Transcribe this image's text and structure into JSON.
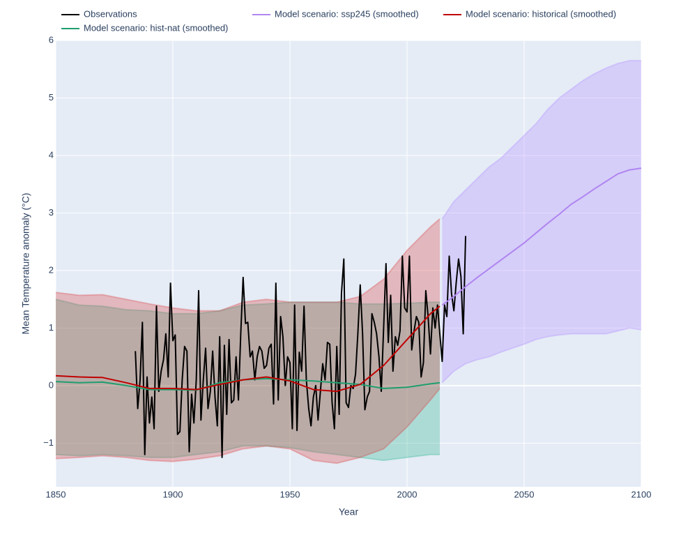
{
  "chart_data": {
    "type": "line",
    "xlabel": "Year",
    "ylabel": "Mean Temperature anomaly (°C)",
    "xlim": [
      1850,
      2100
    ],
    "ylim": [
      -1.76,
      6
    ],
    "xticks": [
      1850,
      1900,
      1950,
      2000,
      2050,
      2100
    ],
    "yticks": [
      {
        "value": -1,
        "label": "−1"
      },
      0,
      1,
      2,
      3,
      4,
      5,
      6
    ],
    "grid": true,
    "legend": "top",
    "series": [
      {
        "name": "Observations",
        "color": "#000000",
        "x": [
          1884,
          1885,
          1886,
          1887,
          1888,
          1889,
          1890,
          1891,
          1892,
          1893,
          1894,
          1895,
          1896,
          1897,
          1898,
          1899,
          1900,
          1901,
          1902,
          1903,
          1904,
          1905,
          1906,
          1907,
          1908,
          1909,
          1910,
          1911,
          1912,
          1913,
          1914,
          1915,
          1916,
          1917,
          1918,
          1919,
          1920,
          1921,
          1922,
          1923,
          1924,
          1925,
          1926,
          1927,
          1928,
          1929,
          1930,
          1931,
          1932,
          1933,
          1934,
          1935,
          1936,
          1937,
          1938,
          1939,
          1940,
          1941,
          1942,
          1943,
          1944,
          1945,
          1946,
          1947,
          1948,
          1949,
          1950,
          1951,
          1952,
          1953,
          1954,
          1955,
          1956,
          1957,
          1958,
          1959,
          1960,
          1961,
          1962,
          1963,
          1964,
          1965,
          1966,
          1967,
          1968,
          1969,
          1970,
          1971,
          1972,
          1973,
          1974,
          1975,
          1976,
          1977,
          1978,
          1979,
          1980,
          1981,
          1982,
          1983,
          1984,
          1985,
          1986,
          1987,
          1988,
          1989,
          1990,
          1991,
          1992,
          1993,
          1994,
          1995,
          1996,
          1997,
          1998,
          1999,
          2000,
          2001,
          2002,
          2003,
          2004,
          2005,
          2006,
          2007,
          2008,
          2009,
          2010,
          2011,
          2012,
          2013,
          2014,
          2015,
          2016,
          2017,
          2018,
          2019,
          2020,
          2021,
          2022,
          2023,
          2024,
          2025
        ],
        "values": [
          0.6,
          -0.4,
          0.1,
          1.1,
          -1.2,
          0.15,
          -0.65,
          -0.2,
          -0.75,
          1.38,
          -0.1,
          0.25,
          0.45,
          0.9,
          0.15,
          1.78,
          0.78,
          0.88,
          -0.85,
          -0.8,
          0.1,
          0.68,
          0.6,
          -1.15,
          -0.15,
          -0.65,
          0.1,
          1.65,
          -0.6,
          0.1,
          0.65,
          -0.4,
          -0.1,
          0.6,
          -0.2,
          -0.7,
          0.85,
          -1.25,
          0.7,
          -0.5,
          0.8,
          -0.3,
          -0.25,
          0.5,
          -0.25,
          0.9,
          1.88,
          1.08,
          1.1,
          0.5,
          0.6,
          0.1,
          0.5,
          0.68,
          0.6,
          0.3,
          0.35,
          0.65,
          0.72,
          -0.32,
          1.78,
          -0.25,
          1.2,
          0.85,
          0.0,
          0.5,
          0.4,
          -0.75,
          1.4,
          -0.78,
          0.58,
          0.25,
          1.38,
          0.1,
          -0.4,
          -0.7,
          -0.2,
          0.0,
          -0.6,
          -0.1,
          0.38,
          0.1,
          0.75,
          0.72,
          -0.3,
          -0.75,
          0.68,
          -0.5,
          1.6,
          2.2,
          -0.3,
          -0.38,
          0.0,
          -0.05,
          0.2,
          0.9,
          1.75,
          0.9,
          -0.42,
          -0.2,
          -0.1,
          1.25,
          1.1,
          0.9,
          0.5,
          -0.1,
          1.0,
          2.12,
          0.75,
          1.57,
          0.25,
          0.85,
          0.7,
          0.95,
          2.25,
          1.35,
          1.28,
          2.25,
          0.62,
          0.95,
          1.2,
          1.1,
          0.15,
          0.4,
          1.65,
          1.2,
          0.55,
          1.35,
          1.0,
          1.4,
          0.9,
          0.42,
          1.4,
          1.2,
          2.25,
          1.6,
          1.3,
          1.8,
          2.2,
          1.9,
          0.9,
          2.6
        ]
      },
      {
        "name": "Model scenario: hist-nat (smoothed)",
        "color": "#1f9e6e",
        "fill": "rgba(40,180,140,0.3)",
        "x": [
          1850,
          1860,
          1870,
          1880,
          1890,
          1900,
          1910,
          1920,
          1930,
          1940,
          1950,
          1960,
          1970,
          1980,
          1990,
          2000,
          2010,
          2014
        ],
        "values": [
          0.07,
          0.05,
          0.06,
          0.0,
          -0.07,
          -0.07,
          -0.08,
          0.05,
          0.1,
          0.12,
          0.1,
          0.08,
          0.05,
          0.02,
          -0.05,
          -0.03,
          0.03,
          0.05
        ],
        "upper": [
          1.5,
          1.4,
          1.38,
          1.32,
          1.3,
          1.25,
          1.25,
          1.3,
          1.4,
          1.42,
          1.45,
          1.45,
          1.45,
          1.42,
          1.42,
          1.43,
          1.45,
          1.45
        ],
        "lower": [
          -1.2,
          -1.22,
          -1.2,
          -1.22,
          -1.25,
          -1.25,
          -1.2,
          -1.15,
          -1.05,
          -1.05,
          -1.08,
          -1.15,
          -1.2,
          -1.25,
          -1.3,
          -1.25,
          -1.2,
          -1.2
        ]
      },
      {
        "name": "Model scenario: ssp245 (smoothed)",
        "color": "#b085f0",
        "fill": "rgba(175,135,255,0.3)",
        "x": [
          2015,
          2020,
          2025,
          2030,
          2035,
          2040,
          2045,
          2050,
          2055,
          2060,
          2065,
          2070,
          2075,
          2080,
          2085,
          2090,
          2095,
          2100
        ],
        "values": [
          1.4,
          1.55,
          1.72,
          1.88,
          2.03,
          2.18,
          2.33,
          2.48,
          2.65,
          2.82,
          2.98,
          3.15,
          3.28,
          3.42,
          3.55,
          3.68,
          3.75,
          3.78
        ],
        "upper": [
          2.9,
          3.2,
          3.4,
          3.6,
          3.8,
          3.95,
          4.15,
          4.35,
          4.55,
          4.8,
          5.0,
          5.15,
          5.3,
          5.42,
          5.52,
          5.6,
          5.65,
          5.65
        ],
        "lower": [
          0.05,
          0.25,
          0.38,
          0.45,
          0.5,
          0.58,
          0.65,
          0.72,
          0.8,
          0.85,
          0.88,
          0.9,
          0.9,
          0.9,
          0.9,
          0.95,
          1.0,
          0.97
        ]
      },
      {
        "name": "Model scenario: historical (smoothed)",
        "color": "#c00000",
        "fill": "rgba(220,60,60,0.3)",
        "x": [
          1850,
          1860,
          1870,
          1880,
          1890,
          1900,
          1910,
          1920,
          1930,
          1940,
          1950,
          1960,
          1970,
          1980,
          1990,
          2000,
          2010,
          2014
        ],
        "values": [
          0.17,
          0.15,
          0.14,
          0.05,
          -0.05,
          -0.05,
          -0.07,
          0.02,
          0.1,
          0.15,
          0.08,
          -0.07,
          -0.1,
          0.02,
          0.35,
          0.8,
          1.25,
          1.38
        ],
        "upper": [
          1.62,
          1.57,
          1.58,
          1.5,
          1.42,
          1.35,
          1.3,
          1.3,
          1.45,
          1.5,
          1.45,
          1.45,
          1.45,
          1.55,
          1.85,
          2.35,
          2.76,
          2.9
        ],
        "lower": [
          -1.27,
          -1.25,
          -1.22,
          -1.25,
          -1.3,
          -1.32,
          -1.28,
          -1.22,
          -1.1,
          -1.05,
          -1.1,
          -1.3,
          -1.35,
          -1.25,
          -1.1,
          -0.72,
          -0.25,
          -0.05
        ]
      }
    ]
  }
}
